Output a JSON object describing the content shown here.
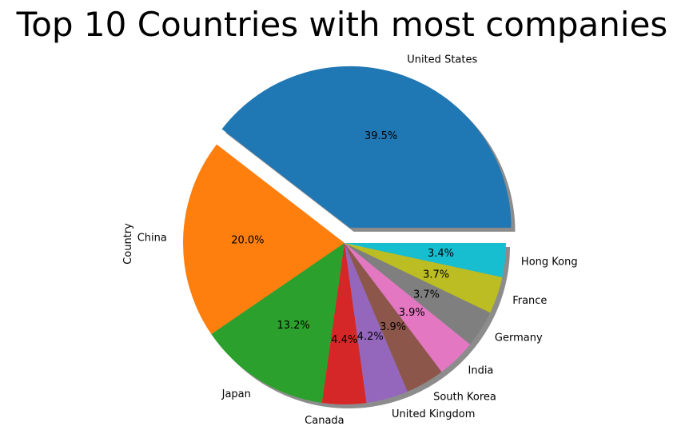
{
  "chart_data": {
    "type": "pie",
    "title": "Top 10 Countries with most companies",
    "ylabel": "Country",
    "categories": [
      "United States",
      "China",
      "Japan",
      "Canada",
      "United Kingdom",
      "South Korea",
      "India",
      "Germany",
      "France",
      "Hong Kong"
    ],
    "values": [
      39.5,
      20.0,
      13.2,
      4.4,
      4.2,
      3.9,
      3.9,
      3.7,
      3.7,
      3.4
    ],
    "percent_labels": [
      "39.5%",
      "20.0%",
      "13.2%",
      "4.4%",
      "4.2%",
      "3.9%",
      "3.9%",
      "3.7%",
      "3.7%",
      "3.4%"
    ],
    "colors": [
      "#1f77b4",
      "#ff7f0e",
      "#2ca02c",
      "#d62728",
      "#9467bd",
      "#8c564b",
      "#e377c2",
      "#7f7f7f",
      "#bcbd22",
      "#17becf"
    ],
    "explode": [
      0.1,
      0,
      0,
      0,
      0,
      0,
      0,
      0,
      0,
      0
    ],
    "shadow": true,
    "start_angle": 0,
    "direction": "counterclockwise"
  }
}
